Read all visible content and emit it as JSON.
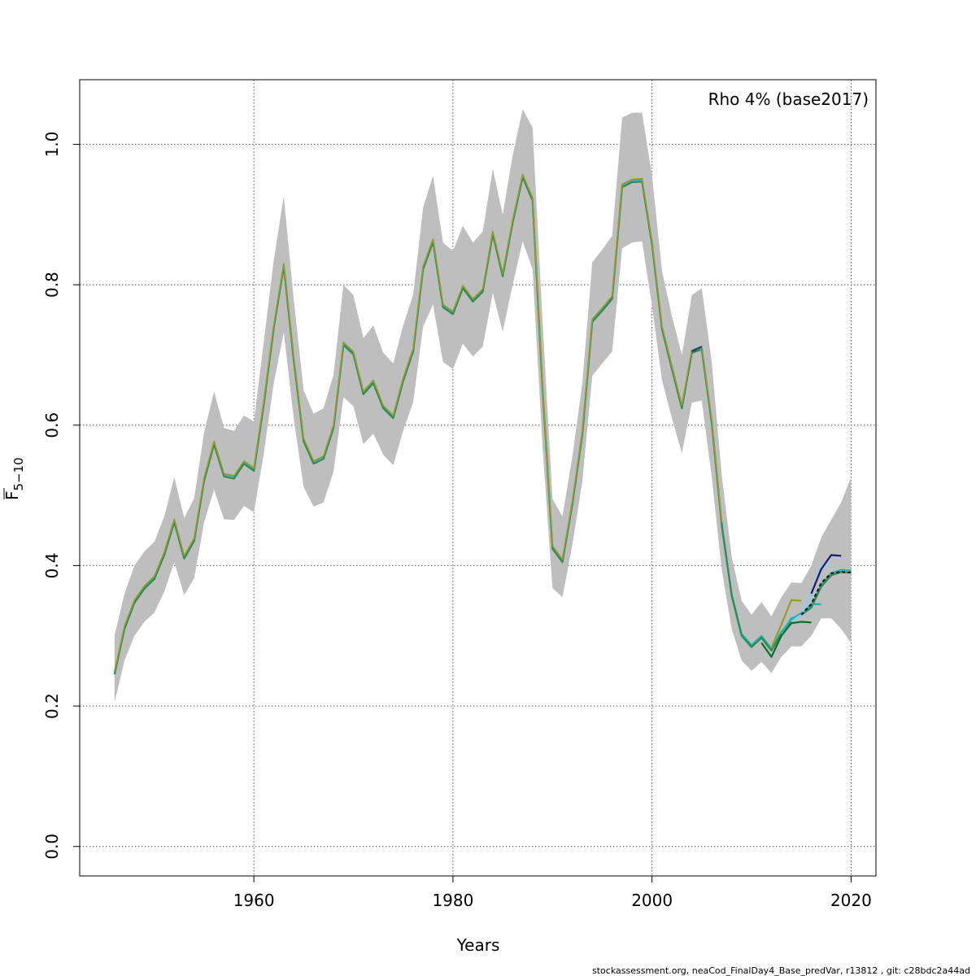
{
  "chart_data": {
    "type": "line",
    "legend_text": "Rho 4% (base2017)",
    "legend_position": "top-right",
    "xlabel": "Years",
    "ylabel_main": "F",
    "ylabel_sub": "5−10",
    "xlim": [
      1942.5,
      2022.5
    ],
    "ylim": [
      -0.042,
      1.092
    ],
    "xticks": [
      1960,
      1980,
      2000,
      2020
    ],
    "xtick_labels": [
      "1960",
      "1980",
      "2000",
      "2020"
    ],
    "yticks": [
      0.0,
      0.2,
      0.4,
      0.6,
      0.8,
      1.0
    ],
    "ytick_labels": [
      "0.0",
      "0.2",
      "0.4",
      "0.6",
      "0.8",
      "1.0"
    ],
    "grid": true,
    "band_color": "#bebebe",
    "base_years_start": 1946,
    "base_series": {
      "name": "base",
      "color": "#2e8b57",
      "years": [
        1946,
        1947,
        1948,
        1949,
        1950,
        1951,
        1952,
        1953,
        1954,
        1955,
        1956,
        1957,
        1958,
        1959,
        1960,
        1961,
        1962,
        1963,
        1964,
        1965,
        1966,
        1967,
        1968,
        1969,
        1970,
        1971,
        1972,
        1973,
        1974,
        1975,
        1976,
        1977,
        1978,
        1979,
        1980,
        1981,
        1982,
        1983,
        1984,
        1985,
        1986,
        1987,
        1988,
        1989,
        1990,
        1991,
        1992,
        1993,
        1994,
        1995,
        1996,
        1997,
        1998,
        1999,
        2000,
        2001,
        2002,
        2003,
        2004,
        2005,
        2006,
        2007,
        2008,
        2009,
        2010,
        2011,
        2012,
        2013,
        2014,
        2015,
        2016,
        2017,
        2018,
        2019,
        2020
      ],
      "values": [
        0.245,
        0.31,
        0.347,
        0.367,
        0.381,
        0.415,
        0.462,
        0.41,
        0.435,
        0.521,
        0.573,
        0.527,
        0.524,
        0.545,
        0.535,
        0.63,
        0.738,
        0.826,
        0.693,
        0.577,
        0.545,
        0.552,
        0.596,
        0.714,
        0.701,
        0.644,
        0.66,
        0.624,
        0.61,
        0.663,
        0.705,
        0.822,
        0.861,
        0.768,
        0.758,
        0.795,
        0.776,
        0.79,
        0.872,
        0.812,
        0.888,
        0.953,
        0.92,
        0.653,
        0.424,
        0.405,
        0.488,
        0.587,
        0.747,
        0.763,
        0.78,
        0.939,
        0.946,
        0.947,
        0.857,
        0.737,
        0.68,
        0.624,
        0.703,
        0.708,
        0.603,
        0.458,
        0.357,
        0.3,
        0.284,
        0.297,
        0.279,
        0.303,
        0.32,
        0.33,
        0.34,
        0.37,
        0.386,
        0.391,
        0.39
      ]
    },
    "band_upper": [
      0.3,
      0.36,
      0.4,
      0.42,
      0.434,
      0.47,
      0.526,
      0.468,
      0.496,
      0.59,
      0.648,
      0.596,
      0.592,
      0.614,
      0.605,
      0.72,
      0.835,
      0.926,
      0.78,
      0.65,
      0.616,
      0.624,
      0.672,
      0.8,
      0.785,
      0.724,
      0.742,
      0.703,
      0.688,
      0.742,
      0.786,
      0.91,
      0.955,
      0.86,
      0.848,
      0.884,
      0.86,
      0.876,
      0.965,
      0.9,
      0.984,
      1.05,
      1.024,
      0.75,
      0.495,
      0.47,
      0.556,
      0.66,
      0.832,
      0.85,
      0.87,
      1.038,
      1.045,
      1.045,
      0.955,
      0.82,
      0.755,
      0.7,
      0.785,
      0.795,
      0.69,
      0.53,
      0.413,
      0.35,
      0.33,
      0.348,
      0.328,
      0.355,
      0.376,
      0.375,
      0.4,
      0.44,
      0.465,
      0.49,
      0.526
    ],
    "band_lower": [
      0.205,
      0.265,
      0.3,
      0.32,
      0.333,
      0.363,
      0.405,
      0.358,
      0.382,
      0.462,
      0.508,
      0.466,
      0.465,
      0.485,
      0.476,
      0.56,
      0.66,
      0.732,
      0.61,
      0.512,
      0.484,
      0.49,
      0.534,
      0.64,
      0.627,
      0.573,
      0.588,
      0.558,
      0.543,
      0.592,
      0.633,
      0.74,
      0.772,
      0.69,
      0.68,
      0.716,
      0.698,
      0.712,
      0.788,
      0.733,
      0.8,
      0.862,
      0.822,
      0.57,
      0.368,
      0.355,
      0.43,
      0.52,
      0.67,
      0.688,
      0.705,
      0.852,
      0.86,
      0.862,
      0.77,
      0.664,
      0.61,
      0.56,
      0.632,
      0.635,
      0.526,
      0.395,
      0.31,
      0.265,
      0.25,
      0.263,
      0.247,
      0.27,
      0.285,
      0.285,
      0.3,
      0.325,
      0.325,
      0.31,
      0.29
    ],
    "peels": [
      {
        "color": "#9a9a2a",
        "years": [
          2012,
          2013,
          2014,
          2015
        ],
        "values": [
          0.283,
          0.316,
          0.351,
          0.35
        ]
      },
      {
        "color": "#0a6e2a",
        "years": [
          2011,
          2012,
          2013,
          2014,
          2015,
          2016
        ],
        "values": [
          0.29,
          0.27,
          0.3,
          0.318,
          0.32,
          0.319
        ]
      },
      {
        "color": "#20b2aa",
        "years": [
          2013,
          2014,
          2015,
          2016,
          2017
        ],
        "values": [
          0.303,
          0.325,
          0.33,
          0.345,
          0.345
        ]
      },
      {
        "color": "#1f3a8a",
        "years": [
          2004,
          2005
        ],
        "values": [
          0.705,
          0.712
        ]
      },
      {
        "color": "#87cefa",
        "years": [
          2014,
          2015,
          2016,
          2017,
          2018
        ],
        "values": [
          0.32,
          0.33,
          0.36,
          0.4,
          0.402
        ]
      },
      {
        "color": "#191970",
        "years": [
          2016,
          2017,
          2018,
          2019
        ],
        "values": [
          0.36,
          0.395,
          0.415,
          0.414
        ]
      }
    ],
    "dashed_series": {
      "color": "#222222",
      "years": [
        2015,
        2016,
        2017,
        2018,
        2019,
        2020
      ],
      "values": [
        0.33,
        0.345,
        0.375,
        0.389,
        0.391,
        0.39
      ]
    }
  },
  "footer": "stockassessment.org, neaCod_FinalDay4_Base_predVar, r13812 , git: c28bdc2a44ad"
}
